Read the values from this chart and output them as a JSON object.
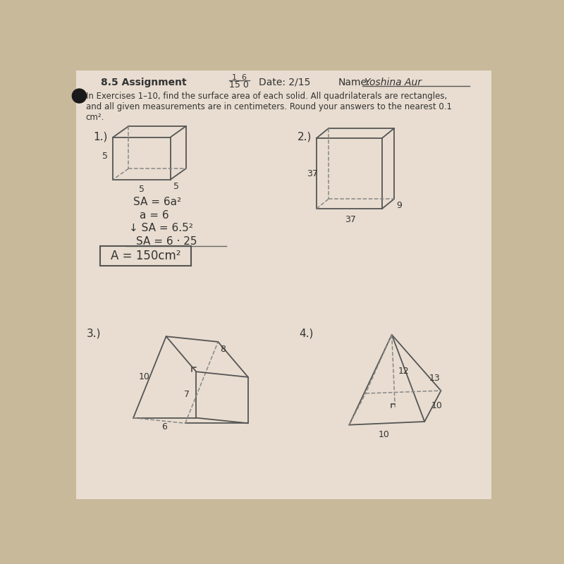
{
  "bg_color": "#c8b99a",
  "paper_color": "#e8ddd0",
  "title": "8.5 Assignment",
  "score_top": "1  6",
  "score_bot": "15 0",
  "date": "Date: 2/15",
  "name_label": "Name:",
  "name_value": "Yoshina Aur",
  "instructions": "In Exercises 1–10, find the surface area of each solid. All quadrilaterals are rectangles,\nand all given measurements are in centimeters. Round your answers to the nearest 0.1\ncm².",
  "prob1_label": "1.)",
  "prob1_dims": [
    "5",
    "5",
    "5"
  ],
  "prob1_work_lines": [
    "SA = 6a²",
    "a = 6",
    "↓ SA = 6.5²",
    "SA = 6 · 25",
    "A = 150cm²"
  ],
  "prob2_label": "2.)",
  "prob2_dims": [
    "37",
    "37",
    "9"
  ],
  "prob3_label": "3.)",
  "prob3_dims": [
    "10",
    "7",
    "8",
    "6"
  ],
  "prob4_label": "4.)",
  "prob4_dims": [
    "13",
    "12",
    "10",
    "10"
  ]
}
